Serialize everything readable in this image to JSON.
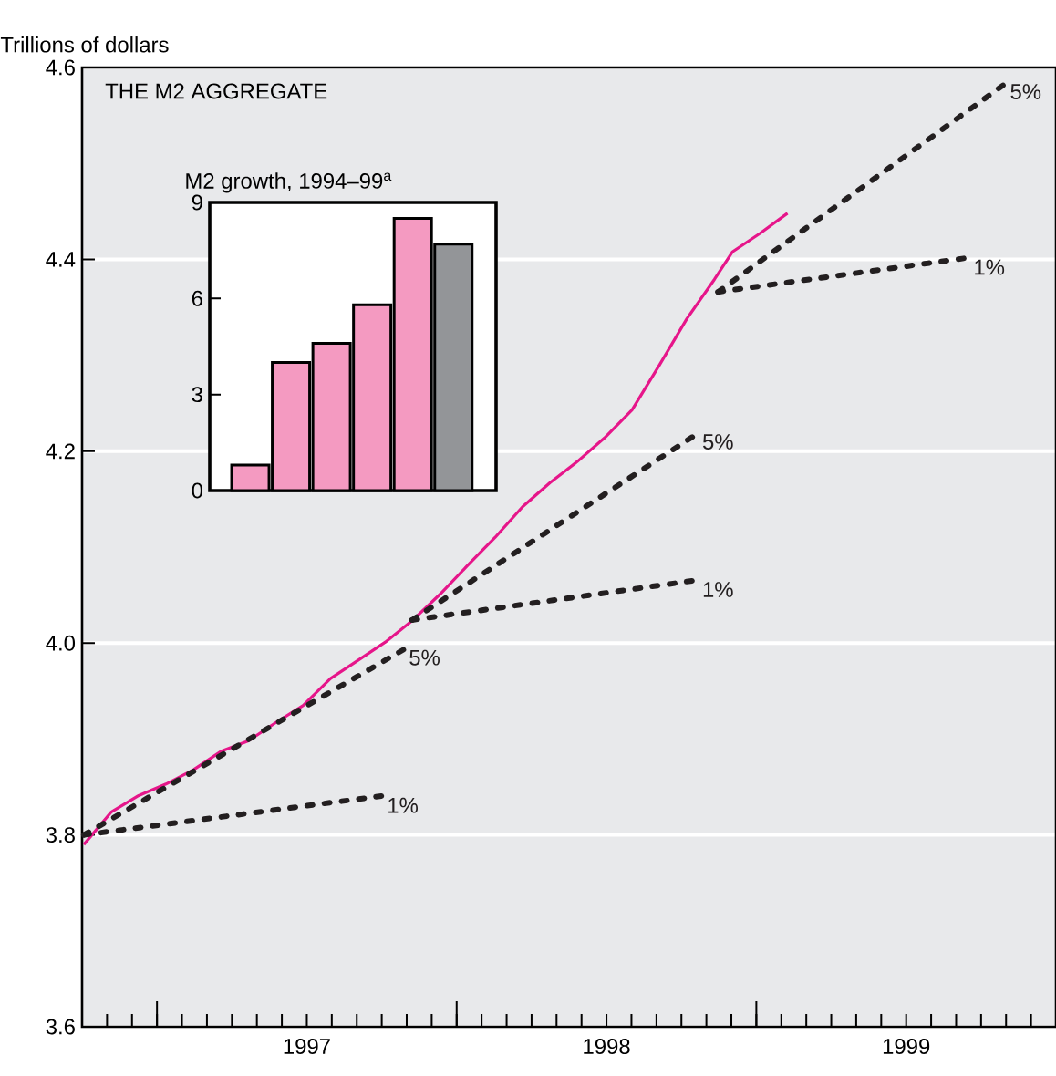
{
  "chart_data": [
    {
      "type": "line",
      "title": "THE M2 AGGREGATE",
      "ylabel": "Trillions of dollars",
      "xlim": [
        1996.75,
        2000.0
      ],
      "ylim": [
        3.6,
        4.6
      ],
      "yticks": [
        3.6,
        3.8,
        {
          "value": 4.0,
          "label": "4.0"
        },
        4.2,
        4.4,
        4.6
      ],
      "grid": "y",
      "xticks": [
        {
          "value": 1996.8333,
          "label": null
        },
        {
          "value": 1996.9167,
          "label": null
        },
        {
          "value": 1997,
          "label": null
        },
        {
          "value": 1997.0833,
          "label": null
        },
        {
          "value": 1997.1667,
          "label": null
        },
        {
          "value": 1997.25,
          "label": null
        },
        {
          "value": 1997.3333,
          "label": null
        },
        {
          "value": 1997.4167,
          "label": null
        },
        {
          "value": 1997.5,
          "label": "1997"
        },
        {
          "value": 1997.5833,
          "label": null
        },
        {
          "value": 1997.6667,
          "label": null
        },
        {
          "value": 1997.75,
          "label": null
        },
        {
          "value": 1997.8333,
          "label": null
        },
        {
          "value": 1997.9167,
          "label": null
        },
        {
          "value": 1998,
          "label": null
        },
        {
          "value": 1998.0833,
          "label": null
        },
        {
          "value": 1998.1667,
          "label": null
        },
        {
          "value": 1998.25,
          "label": null
        },
        {
          "value": 1998.3333,
          "label": null
        },
        {
          "value": 1998.4167,
          "label": null
        },
        {
          "value": 1998.5,
          "label": "1998"
        },
        {
          "value": 1998.5833,
          "label": null
        },
        {
          "value": 1998.6667,
          "label": null
        },
        {
          "value": 1998.75,
          "label": null
        },
        {
          "value": 1998.8333,
          "label": null
        },
        {
          "value": 1998.9167,
          "label": null
        },
        {
          "value": 1999,
          "label": null
        },
        {
          "value": 1999.0833,
          "label": null
        },
        {
          "value": 1999.1667,
          "label": null
        },
        {
          "value": 1999.25,
          "label": null
        },
        {
          "value": 1999.3333,
          "label": null
        },
        {
          "value": 1999.4167,
          "label": null
        },
        {
          "value": 1999.5,
          "label": "1999"
        },
        {
          "value": 1999.5833,
          "label": null
        },
        {
          "value": 1999.6667,
          "label": null
        },
        {
          "value": 1999.75,
          "label": null
        },
        {
          "value": 1999.8333,
          "label": null
        },
        {
          "value": 1999.9167,
          "label": null
        }
      ],
      "series": [
        {
          "color": "#e6168a",
          "x": [
            1996.756,
            1996.848,
            1996.939,
            1997.03,
            1997.122,
            1997.213,
            1997.305,
            1997.396,
            1997.488,
            1997.579,
            1997.671,
            1997.762,
            1997.854,
            1997.945,
            1998.037,
            1998.128,
            1998.22,
            1998.311,
            1998.402,
            1998.494,
            1998.585,
            1998.677,
            1998.768,
            1998.86,
            1998.921,
            1999.012,
            1999.104
          ],
          "values": [
            3.79,
            3.824,
            3.841,
            3.853,
            3.868,
            3.887,
            3.898,
            3.917,
            3.935,
            3.963,
            3.982,
            4.001,
            4.024,
            4.051,
            4.081,
            4.11,
            4.142,
            4.167,
            4.189,
            4.214,
            4.243,
            4.29,
            4.338,
            4.379,
            4.408,
            4.427,
            4.448
          ]
        },
        {
          "name": "1%",
          "color": "#231f20",
          "line_style": "dotted",
          "x": [
            1996.756,
            1997.76
          ],
          "values": [
            3.8,
            3.841
          ]
        },
        {
          "name": "5%",
          "color": "#231f20",
          "line_style": "dotted",
          "x": [
            1996.756,
            1997.833
          ],
          "values": [
            3.8,
            3.995
          ]
        },
        {
          "name": "1%",
          "color": "#231f20",
          "line_style": "dotted",
          "x": [
            1997.851,
            1998.812
          ],
          "values": [
            4.024,
            4.066
          ]
        },
        {
          "name": "5%",
          "color": "#231f20",
          "line_style": "dotted",
          "x": [
            1997.851,
            1998.812
          ],
          "values": [
            4.024,
            4.22
          ]
        },
        {
          "name": "1%",
          "color": "#231f20",
          "line_style": "dotted",
          "x": [
            1998.872,
            1999.717
          ],
          "values": [
            4.366,
            4.402
          ]
        },
        {
          "name": "5%",
          "color": "#231f20",
          "line_style": "dotted",
          "x": [
            1998.872,
            1999.839
          ],
          "values": [
            4.366,
            4.585
          ]
        }
      ]
    },
    {
      "type": "bar",
      "title": "M2 growth, 1994–99$^{a}$",
      "categories": [
        null,
        null,
        null,
        null,
        null,
        null
      ],
      "values": [
        0.8,
        4.0,
        4.6,
        5.8,
        8.5,
        7.7
      ],
      "colors": [
        "#f49ac1",
        "#f49ac1",
        "#f49ac1",
        "#f49ac1",
        "#f49ac1",
        "#939598"
      ],
      "ylim": [
        0,
        9
      ],
      "yticks": [
        0,
        3,
        6,
        9
      ]
    }
  ]
}
